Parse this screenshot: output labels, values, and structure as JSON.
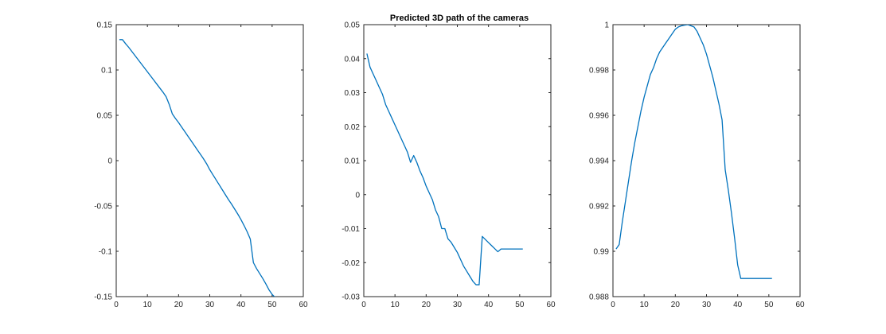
{
  "figure": {
    "title": "Predicted 3D path of the cameras"
  },
  "colors": {
    "series": "#0072BD",
    "axes": "#262626",
    "background": "#ffffff"
  },
  "chart_data": [
    {
      "type": "line",
      "title": "",
      "xlabel": "",
      "ylabel": "",
      "xlim": [
        0,
        60
      ],
      "ylim": [
        -0.15,
        0.15
      ],
      "xticks": [
        0,
        10,
        20,
        30,
        40,
        50,
        60
      ],
      "xtick_labels": [
        "0",
        "10",
        "20",
        "30",
        "40",
        "50",
        "60"
      ],
      "yticks": [
        -0.15,
        -0.1,
        -0.05,
        0,
        0.05,
        0.1,
        0.15
      ],
      "ytick_labels": [
        "-0.15",
        "-0.1",
        "-0.05",
        "0",
        "0.05",
        "0.1",
        "0.15"
      ],
      "grid": false,
      "series": [
        {
          "x": [
            1,
            2,
            3,
            4,
            5,
            6,
            7,
            8,
            9,
            10,
            11,
            12,
            13,
            14,
            15,
            16,
            17,
            18,
            19,
            20,
            21,
            22,
            23,
            24,
            25,
            26,
            27,
            28,
            29,
            30,
            31,
            32,
            33,
            34,
            35,
            36,
            37,
            38,
            39,
            40,
            41,
            42,
            43,
            44,
            45,
            46,
            47,
            48,
            49,
            50,
            51
          ],
          "y": [
            0.1335,
            0.1335,
            0.129,
            0.125,
            0.1205,
            0.116,
            0.1115,
            0.107,
            0.1025,
            0.098,
            0.0935,
            0.089,
            0.0845,
            0.08,
            0.0755,
            0.0705,
            0.062,
            0.0515,
            0.0465,
            0.042,
            0.037,
            0.032,
            0.027,
            0.022,
            0.017,
            0.012,
            0.007,
            0.002,
            -0.0035,
            -0.01,
            -0.0155,
            -0.021,
            -0.0265,
            -0.032,
            -0.0375,
            -0.043,
            -0.048,
            -0.0535,
            -0.059,
            -0.065,
            -0.0715,
            -0.0785,
            -0.0865,
            -0.1125,
            -0.119,
            -0.1245,
            -0.13,
            -0.136,
            -0.1425,
            -0.1475,
            -0.151
          ]
        }
      ]
    },
    {
      "type": "line",
      "title": "Predicted 3D path of the cameras",
      "xlabel": "",
      "ylabel": "",
      "xlim": [
        0,
        60
      ],
      "ylim": [
        -0.03,
        0.05
      ],
      "xticks": [
        0,
        10,
        20,
        30,
        40,
        50,
        60
      ],
      "xtick_labels": [
        "0",
        "10",
        "20",
        "30",
        "40",
        "50",
        "60"
      ],
      "yticks": [
        -0.03,
        -0.02,
        -0.01,
        0,
        0.01,
        0.02,
        0.03,
        0.04,
        0.05
      ],
      "ytick_labels": [
        "-0.03",
        "-0.02",
        "-0.01",
        "0",
        "0.01",
        "0.02",
        "0.03",
        "0.04",
        "0.05"
      ],
      "grid": false,
      "series": [
        {
          "x": [
            1,
            2,
            3,
            4,
            5,
            6,
            7,
            8,
            9,
            10,
            11,
            12,
            13,
            14,
            15,
            16,
            17,
            18,
            19,
            20,
            21,
            22,
            23,
            24,
            25,
            26,
            27,
            28,
            29,
            30,
            31,
            32,
            33,
            34,
            35,
            36,
            37,
            38,
            39,
            40,
            41,
            42,
            43,
            44,
            45,
            46,
            47,
            48,
            49,
            50,
            51
          ],
          "y": [
            0.0415,
            0.0375,
            0.0355,
            0.0335,
            0.0315,
            0.0295,
            0.0265,
            0.0245,
            0.0225,
            0.0205,
            0.0185,
            0.0165,
            0.0145,
            0.0125,
            0.0095,
            0.0115,
            0.0095,
            0.007,
            0.005,
            0.0025,
            0.0005,
            -0.0015,
            -0.0045,
            -0.0065,
            -0.01,
            -0.01,
            -0.013,
            -0.014,
            -0.0155,
            -0.017,
            -0.019,
            -0.021,
            -0.0225,
            -0.024,
            -0.0255,
            -0.0265,
            -0.0265,
            -0.0123,
            -0.0132,
            -0.0141,
            -0.015,
            -0.0159,
            -0.0168,
            -0.016,
            -0.016,
            -0.016,
            -0.016,
            -0.016,
            -0.016,
            -0.016,
            -0.016
          ]
        }
      ]
    },
    {
      "type": "line",
      "title": "",
      "xlabel": "",
      "ylabel": "",
      "xlim": [
        0,
        60
      ],
      "ylim": [
        0.988,
        1.0
      ],
      "xticks": [
        0,
        10,
        20,
        30,
        40,
        50,
        60
      ],
      "xtick_labels": [
        "0",
        "10",
        "20",
        "30",
        "40",
        "50",
        "60"
      ],
      "yticks": [
        0.988,
        0.99,
        0.992,
        0.994,
        0.996,
        0.998,
        1.0
      ],
      "ytick_labels": [
        "0.988",
        "0.99",
        "0.992",
        "0.994",
        "0.996",
        "0.998",
        "1"
      ],
      "grid": false,
      "series": [
        {
          "x": [
            1,
            2,
            3,
            4,
            5,
            6,
            7,
            8,
            9,
            10,
            11,
            12,
            13,
            14,
            15,
            16,
            17,
            18,
            19,
            20,
            21,
            22,
            23,
            24,
            25,
            26,
            27,
            28,
            29,
            30,
            31,
            32,
            33,
            34,
            35,
            36,
            37,
            38,
            39,
            40,
            41,
            42,
            43,
            44,
            45,
            46,
            47,
            48,
            49,
            50,
            51
          ],
          "y": [
            0.9901,
            0.9903,
            0.9913,
            0.9922,
            0.9931,
            0.994,
            0.9948,
            0.9955,
            0.9962,
            0.9968,
            0.9973,
            0.9978,
            0.9981,
            0.9985,
            0.9988,
            0.999,
            0.9992,
            0.9994,
            0.9996,
            0.9998,
            0.9999,
            0.99995,
            0.99998,
            1.0,
            0.99995,
            0.9999,
            0.9997,
            0.9994,
            0.9991,
            0.9987,
            0.9982,
            0.9977,
            0.9971,
            0.9965,
            0.9958,
            0.9936,
            0.9927,
            0.9917,
            0.9906,
            0.9894,
            0.9888,
            0.9888,
            0.9888,
            0.9888,
            0.9888,
            0.9888,
            0.9888,
            0.9888,
            0.9888,
            0.9888,
            0.9888
          ]
        }
      ]
    }
  ]
}
